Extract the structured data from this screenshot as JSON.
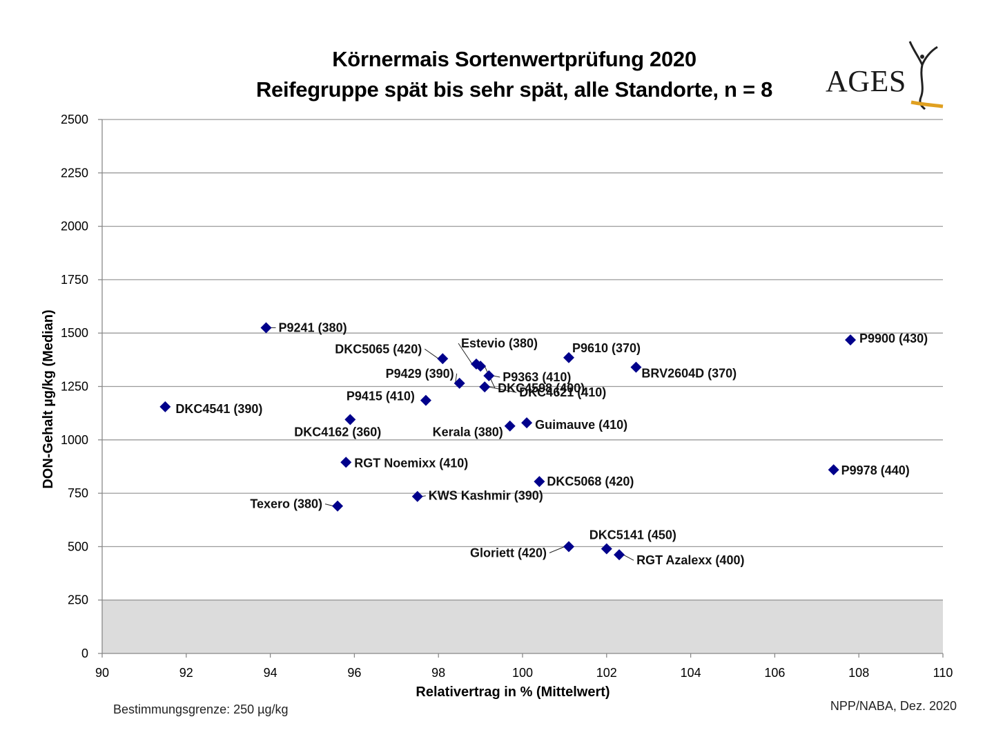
{
  "chart_data": {
    "type": "scatter",
    "title": "Körnermais Sortenwertprüfung 2020",
    "subtitle": "Reifegruppe spät bis sehr spät, alle Standorte, n = 8",
    "xlabel": "Relativertrag in % (Mittelwert)",
    "ylabel": "DON-Gehalt µg/kg (Median)",
    "xlim": [
      90,
      110
    ],
    "ylim": [
      0,
      2500
    ],
    "xticks": [
      "90",
      "92",
      "94",
      "96",
      "98",
      "100",
      "102",
      "104",
      "106",
      "108",
      "110"
    ],
    "yticks": [
      "0",
      "250",
      "500",
      "750",
      "1000",
      "1250",
      "1500",
      "1750",
      "2000",
      "2250",
      "2500"
    ],
    "grid": true,
    "marker_color": "#00008b",
    "threshold_band": {
      "from": 0,
      "to": 250,
      "color": "#dcdcdc"
    },
    "points": [
      {
        "label": "P9241 (380)",
        "x": 93.9,
        "y": 1525
      },
      {
        "label": "DKC4541 (390)",
        "x": 91.5,
        "y": 1155
      },
      {
        "label": "DKC5065 (420)",
        "x": 98.1,
        "y": 1380
      },
      {
        "label": "Estevio (380)",
        "x": 98.9,
        "y": 1355
      },
      {
        "label": "P9429 (390)",
        "x": 98.5,
        "y": 1265
      },
      {
        "label": "P9363 (410)",
        "x": 99.2,
        "y": 1300
      },
      {
        "label": "DKC4621 (410)",
        "x": 99.1,
        "y": 1248
      },
      {
        "label": "DKC4598 (400)",
        "x": 99.0,
        "y": 1345
      },
      {
        "label": "P9415 (410)",
        "x": 97.7,
        "y": 1185
      },
      {
        "label": "DKC4162 (360)",
        "x": 95.9,
        "y": 1095
      },
      {
        "label": "Kerala (380)",
        "x": 99.7,
        "y": 1065
      },
      {
        "label": "Guimauve (410)",
        "x": 100.1,
        "y": 1080
      },
      {
        "label": "P9610 (370)",
        "x": 101.1,
        "y": 1385
      },
      {
        "label": "BRV2604D (370)",
        "x": 102.7,
        "y": 1340
      },
      {
        "label": "P9900 (430)",
        "x": 107.8,
        "y": 1468
      },
      {
        "label": "RGT Noemixx (410)",
        "x": 95.8,
        "y": 895
      },
      {
        "label": "DKC5068 (420)",
        "x": 100.4,
        "y": 805
      },
      {
        "label": "P9978 (440)",
        "x": 107.4,
        "y": 860
      },
      {
        "label": "KWS Kashmir (390)",
        "x": 97.5,
        "y": 735
      },
      {
        "label": "Texero (380)",
        "x": 95.6,
        "y": 690
      },
      {
        "label": "DKC5141 (450)",
        "x": 102.0,
        "y": 490
      },
      {
        "label": "Gloriett (420)",
        "x": 101.1,
        "y": 500
      },
      {
        "label": "RGT Azalexx (400)",
        "x": 102.3,
        "y": 462
      }
    ]
  },
  "logo": {
    "text": "AGES"
  },
  "footer": {
    "left": "Bestimmungsgrenze: 250 µg/kg",
    "right": "NPP/NABA, Dez. 2020"
  }
}
